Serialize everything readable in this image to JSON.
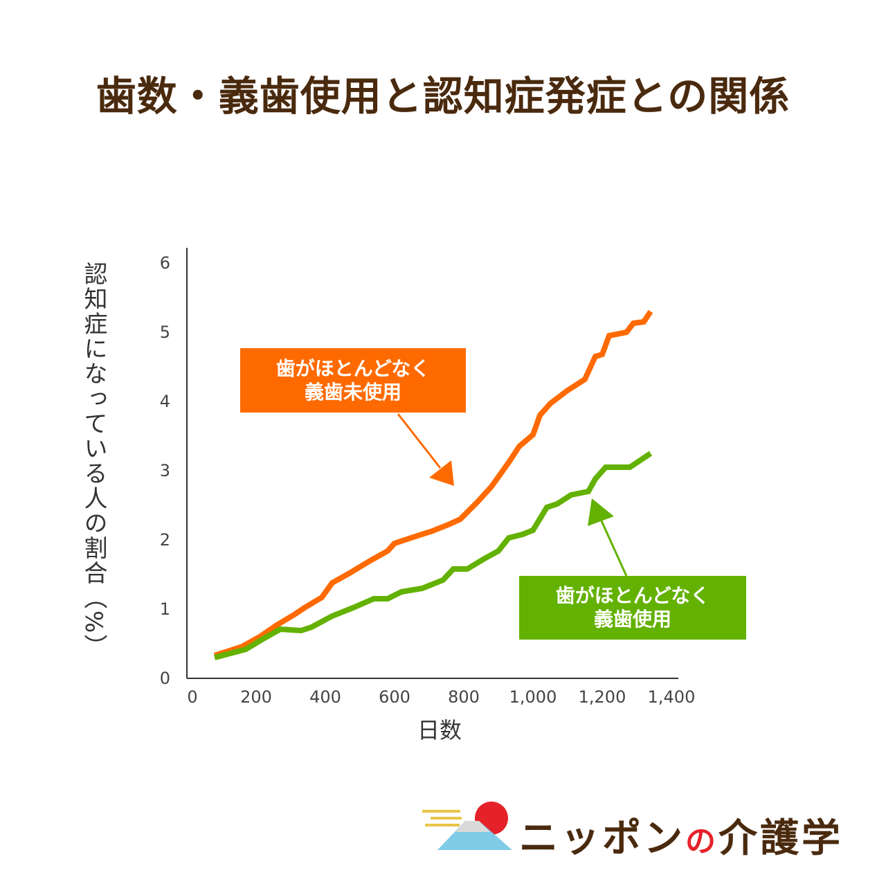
{
  "title": "歯数・義歯使用と認知症発症との関係",
  "colors": {
    "title": "#4a2a0e",
    "orange": "#ff6a00",
    "green": "#63b100",
    "axis": "#333333"
  },
  "callouts": {
    "orange": {
      "line1": "歯がほとんどなく",
      "line2": "義歯未使用"
    },
    "green": {
      "line1": "歯がほとんどなく",
      "line2": "義歯使用"
    }
  },
  "logo": {
    "text_main": "ニッポン",
    "text_no": "の",
    "text_tail": "介護学"
  },
  "chart_data": {
    "type": "line",
    "xlabel": "日数",
    "ylabel": "認知症になっている人の割合（%）",
    "xlim": [
      0,
      1400
    ],
    "ylim": [
      0,
      6
    ],
    "x_ticks": [
      "0",
      "200",
      "400",
      "600",
      "800",
      "1,000",
      "1,200",
      "1,400"
    ],
    "y_ticks": [
      "0",
      "1",
      "2",
      "3",
      "4",
      "5",
      "6"
    ],
    "grid": false,
    "series": [
      {
        "name": "歯がほとんどなく義歯未使用",
        "color": "#ff6a00",
        "points": [
          [
            80,
            0.33
          ],
          [
            160,
            0.46
          ],
          [
            210,
            0.6
          ],
          [
            260,
            0.77
          ],
          [
            310,
            0.92
          ],
          [
            340,
            1.02
          ],
          [
            390,
            1.17
          ],
          [
            420,
            1.38
          ],
          [
            470,
            1.52
          ],
          [
            530,
            1.7
          ],
          [
            580,
            1.84
          ],
          [
            600,
            1.95
          ],
          [
            660,
            2.05
          ],
          [
            710,
            2.13
          ],
          [
            760,
            2.23
          ],
          [
            790,
            2.3
          ],
          [
            840,
            2.55
          ],
          [
            880,
            2.77
          ],
          [
            930,
            3.12
          ],
          [
            960,
            3.35
          ],
          [
            1000,
            3.52
          ],
          [
            1020,
            3.8
          ],
          [
            1050,
            3.97
          ],
          [
            1100,
            4.16
          ],
          [
            1150,
            4.32
          ],
          [
            1180,
            4.65
          ],
          [
            1200,
            4.68
          ],
          [
            1220,
            4.95
          ],
          [
            1270,
            5.0
          ],
          [
            1290,
            5.13
          ],
          [
            1320,
            5.15
          ],
          [
            1340,
            5.3
          ]
        ]
      },
      {
        "name": "歯がほとんどなく義歯使用",
        "color": "#63b100",
        "points": [
          [
            80,
            0.3
          ],
          [
            170,
            0.42
          ],
          [
            220,
            0.57
          ],
          [
            270,
            0.71
          ],
          [
            330,
            0.69
          ],
          [
            360,
            0.74
          ],
          [
            420,
            0.9
          ],
          [
            480,
            1.02
          ],
          [
            540,
            1.15
          ],
          [
            580,
            1.15
          ],
          [
            620,
            1.25
          ],
          [
            680,
            1.3
          ],
          [
            740,
            1.42
          ],
          [
            770,
            1.58
          ],
          [
            810,
            1.58
          ],
          [
            860,
            1.73
          ],
          [
            900,
            1.84
          ],
          [
            930,
            2.03
          ],
          [
            970,
            2.08
          ],
          [
            1000,
            2.14
          ],
          [
            1040,
            2.47
          ],
          [
            1070,
            2.52
          ],
          [
            1110,
            2.65
          ],
          [
            1160,
            2.7
          ],
          [
            1180,
            2.88
          ],
          [
            1210,
            3.05
          ],
          [
            1280,
            3.05
          ],
          [
            1340,
            3.25
          ]
        ]
      }
    ]
  }
}
